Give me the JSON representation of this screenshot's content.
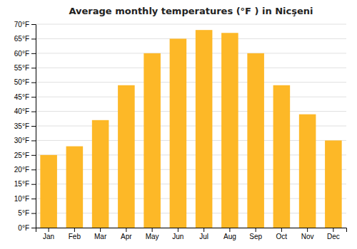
{
  "chart_data": {
    "type": "bar",
    "title": "Average monthly temperatures (°F ) in Nicşeni",
    "categories": [
      "Jan",
      "Feb",
      "Mar",
      "Apr",
      "May",
      "Jun",
      "Jul",
      "Aug",
      "Sep",
      "Oct",
      "Nov",
      "Dec"
    ],
    "values": [
      25,
      28,
      37,
      49,
      60,
      65,
      68,
      67,
      60,
      49,
      39,
      30
    ],
    "color": "#FDB827",
    "ylim": [
      0,
      70
    ],
    "yticks": [
      {
        "value": 0,
        "label": "0°F"
      },
      {
        "value": 5,
        "label": "5°F"
      },
      {
        "value": 10,
        "label": "10°F"
      },
      {
        "value": 15,
        "label": "15°F"
      },
      {
        "value": 20,
        "label": "20°F"
      },
      {
        "value": 25,
        "label": "25°F"
      },
      {
        "value": 30,
        "label": "30°F"
      },
      {
        "value": 35,
        "label": "35°F"
      },
      {
        "value": 40,
        "label": "40°F"
      },
      {
        "value": 45,
        "label": "45°F"
      },
      {
        "value": 50,
        "label": "50°F"
      },
      {
        "value": 55,
        "label": "55°F"
      },
      {
        "value": 60,
        "label": "60°F"
      },
      {
        "value": 65,
        "label": "65°F"
      },
      {
        "value": 70,
        "label": "70°F"
      }
    ],
    "grid": true
  }
}
